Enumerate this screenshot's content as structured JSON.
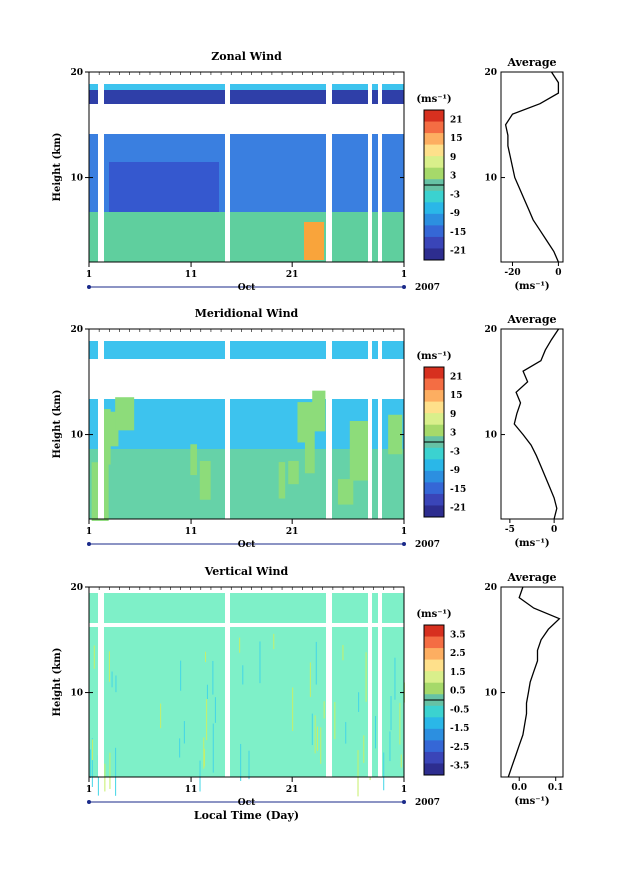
{
  "chart_data": [
    {
      "type": "heatmap",
      "title": "Zonal Wind",
      "xlabel": "",
      "ylabel": "Height (km)",
      "ylim": [
        2,
        20
      ],
      "y_ticks": [
        "20",
        "10"
      ],
      "x_ticks": [
        "1",
        "11",
        "21",
        "1"
      ],
      "month_label": "Oct",
      "year_label": "2007",
      "colorbar": {
        "unit": "(ms⁻¹)",
        "ticks": [
          "21",
          "15",
          "9",
          "3",
          "-3",
          "-9",
          "-15",
          "-21"
        ],
        "range": [
          -24,
          24
        ]
      },
      "profile": {
        "title": "Average",
        "xlabel": "(ms⁻¹)",
        "x_ticks": [
          "-20",
          "0"
        ],
        "xlim": [
          -25,
          2
        ],
        "heights": [
          2,
          3,
          4,
          5,
          6,
          7,
          8,
          9,
          10,
          11,
          12,
          13,
          14,
          15,
          16,
          17,
          18,
          19,
          20
        ],
        "values": [
          0,
          -2,
          -5,
          -8,
          -11,
          -13,
          -15,
          -17,
          -19,
          -20,
          -21,
          -22,
          -22,
          -23,
          -20,
          -8,
          0,
          0,
          -3
        ]
      }
    },
    {
      "type": "heatmap",
      "title": "Meridional Wind",
      "xlabel": "",
      "ylabel": "Height (km)",
      "ylim": [
        2,
        20
      ],
      "y_ticks": [
        "20",
        "10"
      ],
      "x_ticks": [
        "1",
        "11",
        "21",
        "1"
      ],
      "month_label": "Oct",
      "year_label": "2007",
      "colorbar": {
        "unit": "(ms⁻¹)",
        "ticks": [
          "21",
          "15",
          "9",
          "3",
          "-3",
          "-9",
          "-15",
          "-21"
        ],
        "range": [
          -24,
          24
        ]
      },
      "profile": {
        "title": "Average",
        "xlabel": "(ms⁻¹)",
        "x_ticks": [
          "-5",
          "0"
        ],
        "xlim": [
          -6,
          1
        ],
        "heights": [
          2,
          3,
          4,
          5,
          6,
          7,
          8,
          9,
          10,
          11,
          12,
          13,
          14,
          15,
          16,
          17,
          18,
          19,
          20
        ],
        "values": [
          0,
          0.3,
          0,
          -0.5,
          -1,
          -1.5,
          -2,
          -2.6,
          -3.5,
          -4.5,
          -4.2,
          -3.8,
          -4.3,
          -3,
          -3.5,
          -1.5,
          -1,
          -0.3,
          0.5
        ]
      }
    },
    {
      "type": "heatmap",
      "title": "Vertical Wind",
      "xlabel": "Local Time (Day)",
      "ylabel": "Height (km)",
      "ylim": [
        2,
        20
      ],
      "y_ticks": [
        "20",
        "10"
      ],
      "x_ticks": [
        "1",
        "11",
        "21",
        "1"
      ],
      "month_label": "Oct",
      "year_label": "2007",
      "colorbar": {
        "unit": "(ms⁻¹)",
        "ticks": [
          "3.5",
          "2.5",
          "1.5",
          "0.5",
          "-0.5",
          "-1.5",
          "-2.5",
          "-3.5"
        ],
        "range": [
          -4,
          4
        ]
      },
      "profile": {
        "title": "Average",
        "xlabel": "(ms⁻¹)",
        "x_ticks": [
          "0.0",
          "0.1"
        ],
        "xlim": [
          -0.05,
          0.12
        ],
        "heights": [
          2,
          3,
          4,
          5,
          6,
          7,
          8,
          9,
          10,
          11,
          12,
          13,
          14,
          15,
          16,
          17,
          18,
          19,
          20
        ],
        "values": [
          -0.03,
          -0.02,
          -0.01,
          0.0,
          0.01,
          0.015,
          0.02,
          0.02,
          0.025,
          0.03,
          0.04,
          0.05,
          0.05,
          0.06,
          0.08,
          0.11,
          0.04,
          0.0,
          0.01
        ]
      }
    }
  ]
}
